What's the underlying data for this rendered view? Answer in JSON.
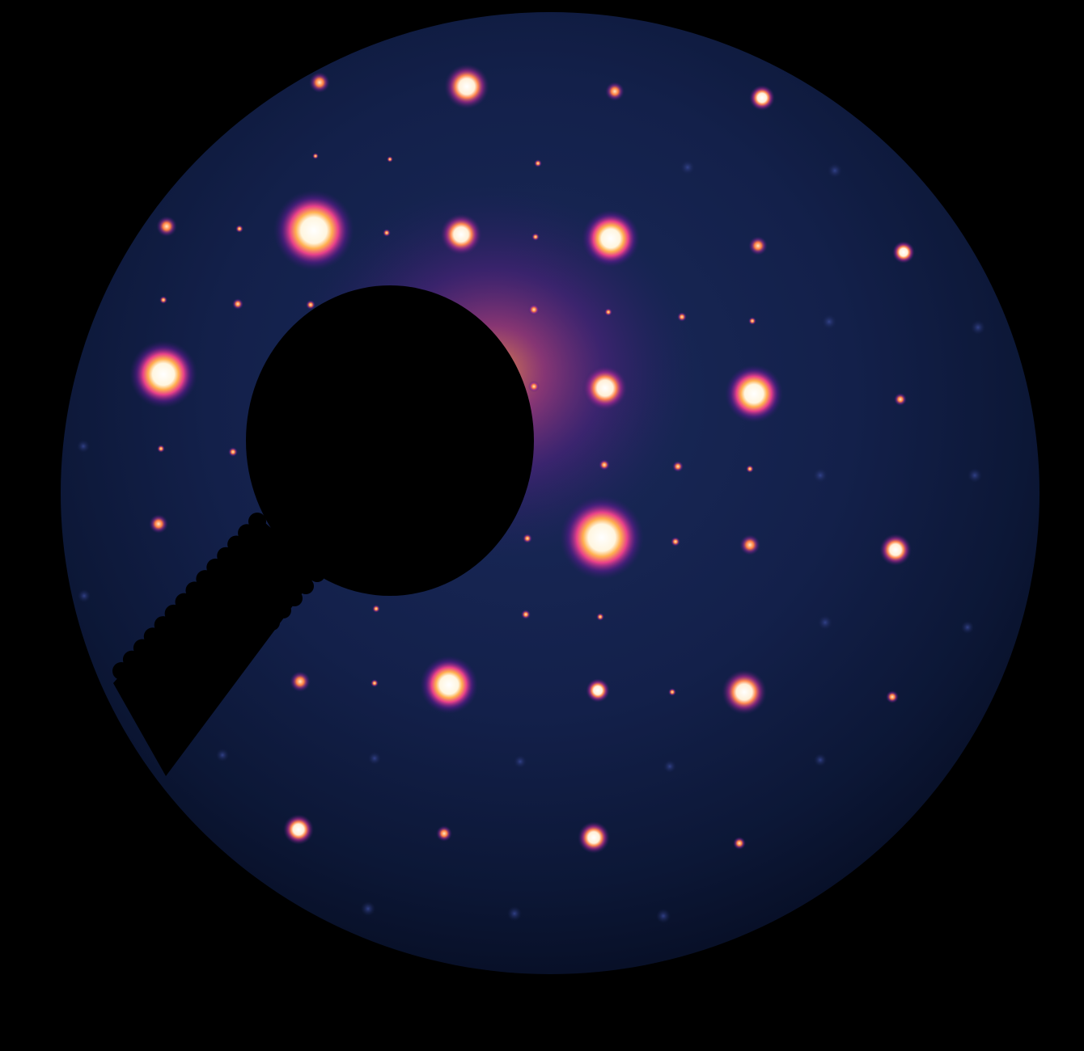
{
  "image": {
    "subject": "diffraction-pattern",
    "colormap": [
      "#000000",
      "#0b1430",
      "#1a2450",
      "#5a1a8a",
      "#b02a9a",
      "#f0508a",
      "#ff9a40",
      "#fff8e8"
    ],
    "background": "#000000",
    "screen_color": "#0d1838"
  }
}
